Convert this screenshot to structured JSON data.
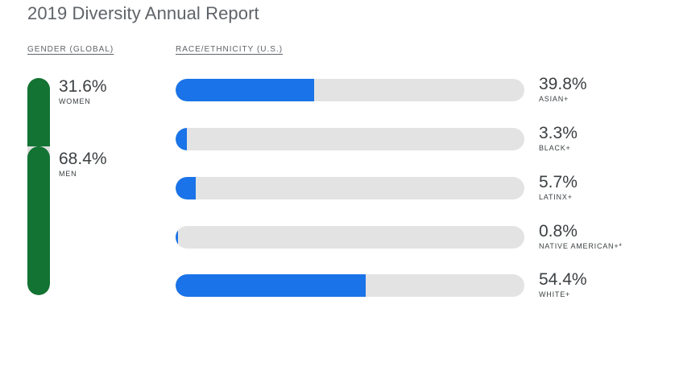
{
  "page": {
    "title": "2019 Diversity Annual Report"
  },
  "colors": {
    "gender_bar": "#137333",
    "race_bar": "#1a73e8",
    "track": "#e3e3e3"
  },
  "chart_data": [
    {
      "type": "bar",
      "title": "GENDER (GLOBAL)",
      "orientation": "vertical-stacked",
      "categories": [
        "WOMEN",
        "MEN"
      ],
      "values": [
        31.6,
        68.4
      ],
      "labels": [
        "31.6%",
        "68.4%"
      ],
      "unit": "%"
    },
    {
      "type": "bar",
      "title": "RACE/ETHNICITY (U.S.)",
      "orientation": "horizontal",
      "categories": [
        "ASIAN+",
        "BLACK+",
        "LATINX+",
        "NATIVE AMERICAN+*",
        "WHITE+"
      ],
      "values": [
        39.8,
        3.3,
        5.7,
        0.8,
        54.4
      ],
      "labels": [
        "39.8%",
        "3.3%",
        "5.7%",
        "0.8%",
        "54.4%"
      ],
      "unit": "%",
      "xlim": [
        0,
        100
      ]
    }
  ]
}
